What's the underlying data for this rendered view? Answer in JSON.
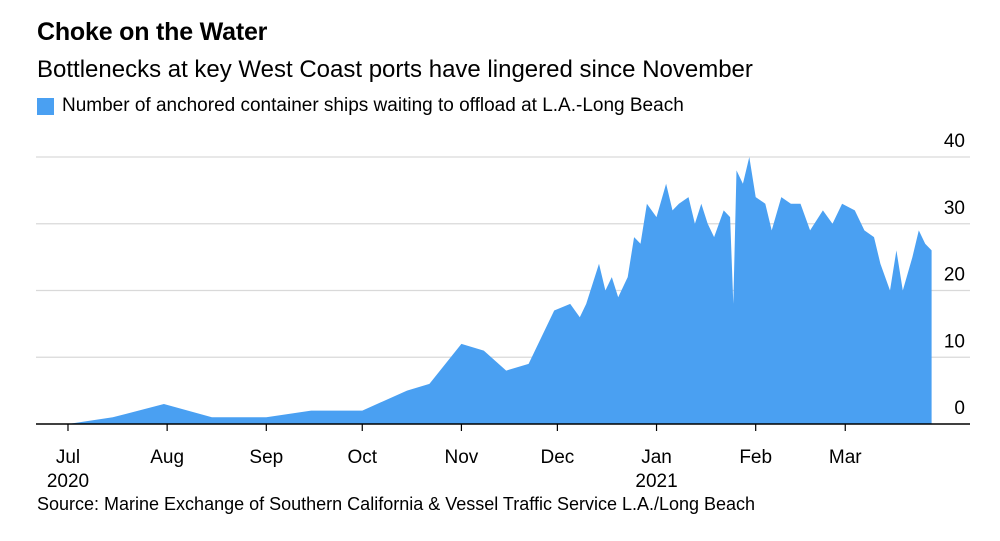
{
  "title": "Choke on the Water",
  "subtitle": "Bottlenecks at key West Coast ports have lingered since November",
  "legend_label": "Number of anchored container ships waiting to offload at L.A.-Long Beach",
  "source": "Source: Marine Exchange of Southern California & Vessel Traffic Service L.A./Long Beach",
  "colors": {
    "area": "#4aa0f2",
    "grid": "#d9d9d9",
    "axis": "#000000"
  },
  "chart_data": {
    "type": "area",
    "title": "Choke on the Water",
    "subtitle": "Bottlenecks at key West Coast ports have lingered since November",
    "series": [
      {
        "name": "Number of anchored container ships waiting to offload at L.A.-Long Beach",
        "points": [
          [
            "2020-07-01",
            0
          ],
          [
            "2020-07-15",
            1
          ],
          [
            "2020-07-31",
            3
          ],
          [
            "2020-08-15",
            1
          ],
          [
            "2020-09-01",
            1
          ],
          [
            "2020-09-15",
            2
          ],
          [
            "2020-10-01",
            2
          ],
          [
            "2020-10-15",
            5
          ],
          [
            "2020-10-22",
            6
          ],
          [
            "2020-11-01",
            12
          ],
          [
            "2020-11-08",
            11
          ],
          [
            "2020-11-15",
            8
          ],
          [
            "2020-11-22",
            9
          ],
          [
            "2020-11-30",
            17
          ],
          [
            "2020-12-05",
            18
          ],
          [
            "2020-12-08",
            16
          ],
          [
            "2020-12-10",
            18
          ],
          [
            "2020-12-14",
            24
          ],
          [
            "2020-12-16",
            20
          ],
          [
            "2020-12-18",
            22
          ],
          [
            "2020-12-20",
            19
          ],
          [
            "2020-12-23",
            22
          ],
          [
            "2020-12-25",
            28
          ],
          [
            "2020-12-27",
            27
          ],
          [
            "2020-12-29",
            33
          ],
          [
            "2021-01-01",
            31
          ],
          [
            "2021-01-04",
            36
          ],
          [
            "2021-01-06",
            32
          ],
          [
            "2021-01-08",
            33
          ],
          [
            "2021-01-11",
            34
          ],
          [
            "2021-01-13",
            30
          ],
          [
            "2021-01-15",
            33
          ],
          [
            "2021-01-17",
            30
          ],
          [
            "2021-01-19",
            28
          ],
          [
            "2021-01-22",
            32
          ],
          [
            "2021-01-24",
            31
          ],
          [
            "2021-01-25",
            18
          ],
          [
            "2021-01-26",
            38
          ],
          [
            "2021-01-28",
            36
          ],
          [
            "2021-01-30",
            40
          ],
          [
            "2021-02-01",
            34
          ],
          [
            "2021-02-04",
            33
          ],
          [
            "2021-02-06",
            29
          ],
          [
            "2021-02-09",
            34
          ],
          [
            "2021-02-12",
            33
          ],
          [
            "2021-02-15",
            33
          ],
          [
            "2021-02-18",
            29
          ],
          [
            "2021-02-22",
            32
          ],
          [
            "2021-02-25",
            30
          ],
          [
            "2021-02-28",
            33
          ],
          [
            "2021-03-04",
            32
          ],
          [
            "2021-03-07",
            29
          ],
          [
            "2021-03-10",
            28
          ],
          [
            "2021-03-12",
            24
          ],
          [
            "2021-03-15",
            20
          ],
          [
            "2021-03-17",
            26
          ],
          [
            "2021-03-19",
            20
          ],
          [
            "2021-03-22",
            25
          ],
          [
            "2021-03-24",
            29
          ],
          [
            "2021-03-26",
            27
          ],
          [
            "2021-03-28",
            26
          ]
        ]
      }
    ],
    "x_ticks": [
      {
        "date": "2020-07-01",
        "label": "Jul",
        "year": "2020"
      },
      {
        "date": "2020-08-01",
        "label": "Aug"
      },
      {
        "date": "2020-09-01",
        "label": "Sep"
      },
      {
        "date": "2020-10-01",
        "label": "Oct"
      },
      {
        "date": "2020-11-01",
        "label": "Nov"
      },
      {
        "date": "2020-12-01",
        "label": "Dec"
      },
      {
        "date": "2021-01-01",
        "label": "Jan",
        "year": "2021"
      },
      {
        "date": "2021-02-01",
        "label": "Feb"
      },
      {
        "date": "2021-03-01",
        "label": "Mar"
      }
    ],
    "y_ticks": [
      0,
      10,
      20,
      30,
      40
    ],
    "ylim": [
      0,
      40
    ],
    "xlim": [
      "2020-06-21",
      "2021-04-09"
    ],
    "grid": true,
    "y_axis_side": "right",
    "legend_position": "top-left"
  }
}
